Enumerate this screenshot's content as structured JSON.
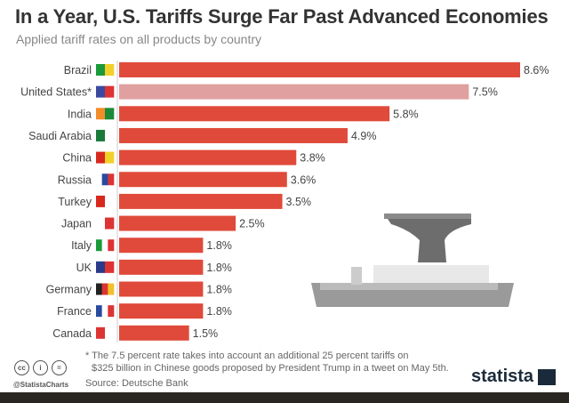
{
  "chart_data": {
    "type": "bar",
    "orientation": "horizontal",
    "title": "In a Year, U.S. Tariffs Surge Far Past Advanced Economies",
    "subtitle": "Applied tariff rates on all products by country",
    "categories": [
      "Brazil",
      "United States*",
      "India",
      "Saudi Arabia",
      "China",
      "Russia",
      "Turkey",
      "Japan",
      "Italy",
      "UK",
      "Germany",
      "France",
      "Canada"
    ],
    "values": [
      8.6,
      7.5,
      5.8,
      4.9,
      3.8,
      3.6,
      3.5,
      2.5,
      1.8,
      1.8,
      1.8,
      1.8,
      1.5
    ],
    "value_labels": [
      "8.6%",
      "7.5%",
      "5.8%",
      "4.9%",
      "3.8%",
      "3.6%",
      "3.5%",
      "2.5%",
      "1.8%",
      "1.8%",
      "1.8%",
      "1.8%",
      "1.5%"
    ],
    "unit": "%",
    "highlight_category": "United States*",
    "colors": {
      "bar": "#e04a3a",
      "highlight": "#e0a0a0"
    },
    "grid": false
  },
  "footer": {
    "note": "* The 7.5 percent rate takes into account an additional 25 percent tariffs on",
    "note2": "$325 billion in Chinese goods proposed by President Trump in a tweet on May 5th.",
    "source": "Source: Deutsche Bank",
    "handle": "@StatistaCharts",
    "logo": "statista"
  }
}
